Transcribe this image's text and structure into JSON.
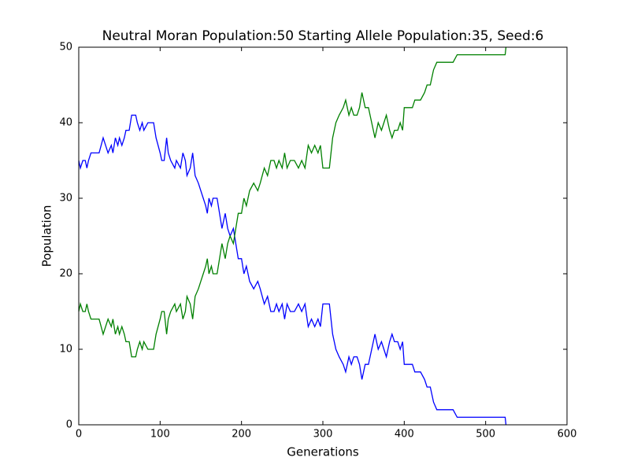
{
  "chart_data": {
    "type": "line",
    "title": "Neutral Moran Population:50 Starting Allele Population:35, Seed:6",
    "xlabel": "Generations",
    "ylabel": "Population",
    "x": [
      0,
      2,
      5,
      8,
      10,
      12,
      15,
      20,
      25,
      30,
      33,
      36,
      40,
      42,
      45,
      48,
      50,
      53,
      56,
      58,
      62,
      65,
      70,
      72,
      75,
      78,
      80,
      85,
      92,
      95,
      100,
      102,
      105,
      108,
      110,
      113,
      118,
      120,
      125,
      128,
      131,
      133,
      137,
      140,
      143,
      147,
      150,
      153,
      156,
      158,
      160,
      163,
      165,
      170,
      173,
      176,
      180,
      183,
      186,
      190,
      193,
      196,
      200,
      203,
      206,
      210,
      215,
      220,
      223,
      228,
      232,
      236,
      240,
      243,
      246,
      250,
      253,
      256,
      260,
      265,
      270,
      274,
      278,
      282,
      286,
      290,
      294,
      297,
      300,
      308,
      312,
      316,
      320,
      325,
      328,
      332,
      335,
      338,
      342,
      345,
      348,
      352,
      356,
      360,
      364,
      368,
      372,
      375,
      378,
      382,
      385,
      388,
      392,
      395,
      398,
      400,
      410,
      413,
      420,
      425,
      428,
      432,
      434,
      436,
      440,
      460,
      465,
      500,
      524,
      525
    ],
    "series": [
      {
        "color": "#0000ff",
        "values": [
          35,
          34,
          35,
          35,
          34,
          35,
          36,
          36,
          36,
          38,
          37,
          36,
          37,
          36,
          38,
          37,
          38,
          37,
          38,
          39,
          39,
          41,
          41,
          40,
          39,
          40,
          39,
          40,
          40,
          38,
          36,
          35,
          35,
          38,
          36,
          35,
          34,
          35,
          34,
          36,
          35,
          33,
          34,
          36,
          33,
          32,
          31,
          30,
          29,
          28,
          30,
          29,
          30,
          30,
          28,
          26,
          28,
          26,
          25,
          26,
          24,
          22,
          22,
          20,
          21,
          19,
          18,
          19,
          18,
          16,
          17,
          15,
          15,
          16,
          15,
          16,
          14,
          16,
          15,
          15,
          16,
          15,
          16,
          13,
          14,
          13,
          14,
          13,
          16,
          16,
          12,
          10,
          9,
          8,
          7,
          9,
          8,
          9,
          9,
          8,
          6,
          8,
          8,
          10,
          12,
          10,
          11,
          10,
          9,
          11,
          12,
          11,
          11,
          10,
          11,
          8,
          8,
          7,
          7,
          6,
          5,
          5,
          4,
          3,
          2,
          2,
          1,
          1,
          1,
          0
        ]
      },
      {
        "color": "#008000",
        "values": [
          15,
          16,
          15,
          15,
          16,
          15,
          14,
          14,
          14,
          12,
          13,
          14,
          13,
          14,
          12,
          13,
          12,
          13,
          12,
          11,
          11,
          9,
          9,
          10,
          11,
          10,
          11,
          10,
          10,
          12,
          14,
          15,
          15,
          12,
          14,
          15,
          16,
          15,
          16,
          14,
          15,
          17,
          16,
          14,
          17,
          18,
          19,
          20,
          21,
          22,
          20,
          21,
          20,
          20,
          22,
          24,
          22,
          24,
          25,
          24,
          26,
          28,
          28,
          30,
          29,
          31,
          32,
          31,
          32,
          34,
          33,
          35,
          35,
          34,
          35,
          34,
          36,
          34,
          35,
          35,
          34,
          35,
          34,
          37,
          36,
          37,
          36,
          37,
          34,
          34,
          38,
          40,
          41,
          42,
          43,
          41,
          42,
          41,
          41,
          42,
          44,
          42,
          42,
          40,
          38,
          40,
          39,
          40,
          41,
          39,
          38,
          39,
          39,
          40,
          39,
          42,
          42,
          43,
          43,
          44,
          45,
          45,
          46,
          47,
          48,
          48,
          49,
          49,
          49,
          50
        ]
      }
    ],
    "xlim": [
      0,
      600
    ],
    "xticks": [
      0,
      100,
      200,
      300,
      400,
      500,
      600
    ],
    "ylim": [
      0,
      50
    ],
    "yticks": [
      0,
      10,
      20,
      30,
      40,
      50
    ]
  }
}
